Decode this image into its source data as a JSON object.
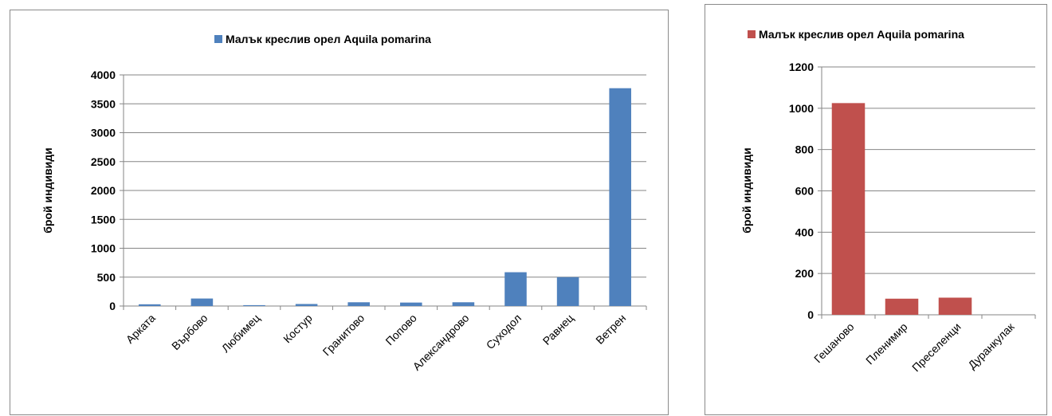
{
  "chart_data": [
    {
      "type": "bar",
      "ylabel": "брой индивиди",
      "xlabel": "",
      "legend_position": "top",
      "grid": true,
      "ylim": [
        0,
        4000
      ],
      "yticks": [
        "0",
        "500",
        "1000",
        "1500",
        "2000",
        "2500",
        "3000",
        "3500",
        "4000"
      ],
      "categories": [
        "Арката",
        "Върбово",
        "Любимец",
        "Костур",
        "Гранитово",
        "Попово",
        "Александрово",
        "Суходол",
        "Равнец",
        "Ветрен"
      ],
      "series": [
        {
          "name": "Малък креслив орел Aquila pomarina",
          "color": "#4f81bd",
          "values": [
            30,
            130,
            15,
            35,
            65,
            60,
            65,
            585,
            500,
            3770
          ]
        }
      ]
    },
    {
      "type": "bar",
      "ylabel": "брой индивиди",
      "xlabel": "",
      "legend_position": "top",
      "grid": true,
      "ylim": [
        0,
        1200
      ],
      "yticks": [
        "0",
        "200",
        "400",
        "600",
        "800",
        "1000",
        "1200"
      ],
      "categories": [
        "Гешаново",
        "Пленимир",
        "Преселенци",
        "Дуранкулак"
      ],
      "series": [
        {
          "name": "Малък креслив орел Aquila pomarina",
          "color": "#c0504d",
          "values": [
            1025,
            78,
            83,
            0
          ]
        }
      ]
    }
  ]
}
